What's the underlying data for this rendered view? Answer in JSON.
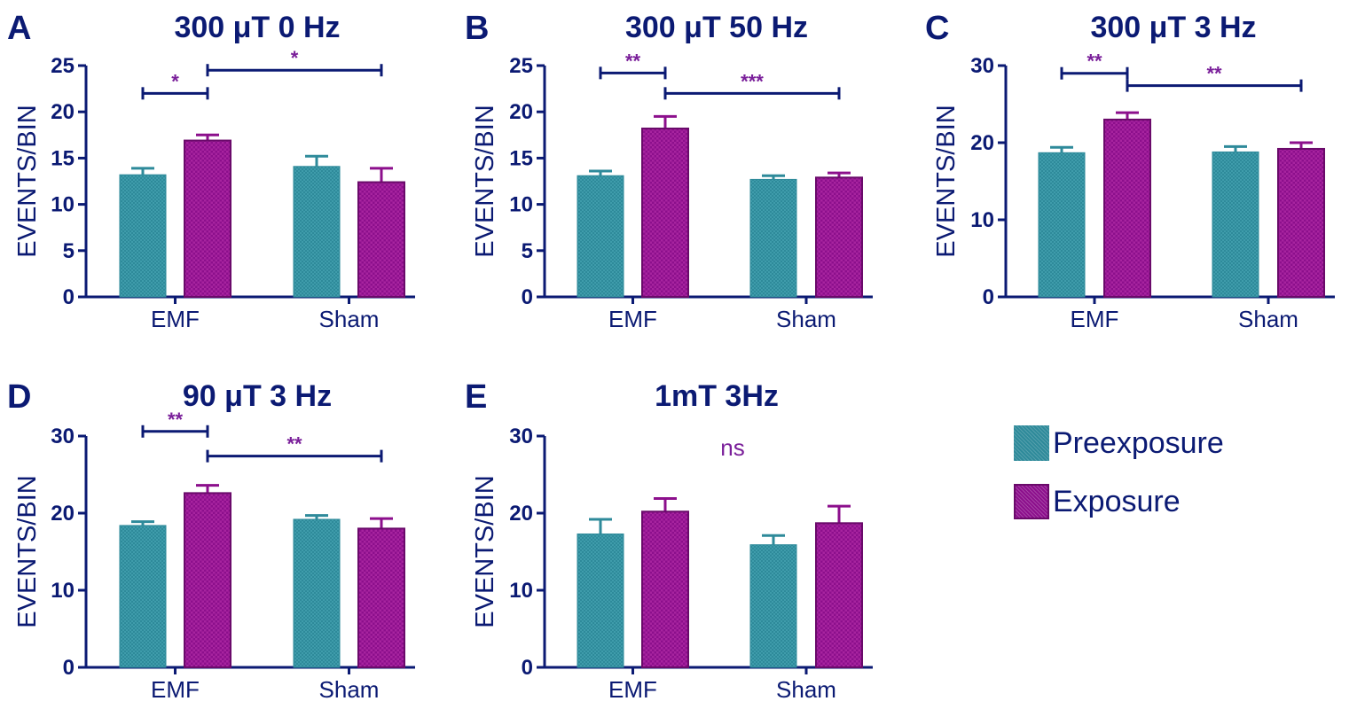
{
  "colors": {
    "axis": "#0b1a73",
    "preexposure": "#2e8a9a",
    "exposure": "#8c0f8c",
    "significance_bracket": "#0b1a73",
    "significance_text": "#7a1f9a"
  },
  "legend": {
    "items": [
      {
        "label": "Preexposure",
        "color": "#2e8a9a"
      },
      {
        "label": "Exposure",
        "color": "#8c0f8c"
      }
    ]
  },
  "chart_data": [
    {
      "type": "bar",
      "panel_letter": "A",
      "title": "300 μT 0 Hz",
      "ylabel": "EVENTS/BIN",
      "categories": [
        "EMF",
        "Sham"
      ],
      "ylim": [
        0,
        25
      ],
      "yticks": [
        "0",
        "5",
        "10",
        "15",
        "20",
        "25"
      ],
      "series": [
        {
          "name": "Preexposure",
          "values": [
            13.2,
            14.1
          ],
          "errors": [
            0.7,
            1.1
          ]
        },
        {
          "name": "Exposure",
          "values": [
            16.9,
            12.4
          ],
          "errors": [
            0.6,
            1.5
          ]
        }
      ],
      "significance": [
        {
          "from": [
            0,
            0
          ],
          "to": [
            0,
            1
          ],
          "y": 22.0,
          "label": "*"
        },
        {
          "from": [
            0,
            1
          ],
          "to": [
            1,
            1
          ],
          "y": 24.5,
          "label": "*"
        }
      ]
    },
    {
      "type": "bar",
      "panel_letter": "B",
      "title": "300 μT 50 Hz",
      "ylabel": "EVENTS/BIN",
      "categories": [
        "EMF",
        "Sham"
      ],
      "ylim": [
        0,
        25
      ],
      "yticks": [
        "0",
        "5",
        "10",
        "15",
        "20",
        "25"
      ],
      "series": [
        {
          "name": "Preexposure",
          "values": [
            13.1,
            12.7
          ],
          "errors": [
            0.5,
            0.4
          ]
        },
        {
          "name": "Exposure",
          "values": [
            18.2,
            12.9
          ],
          "errors": [
            1.3,
            0.5
          ]
        }
      ],
      "significance": [
        {
          "from": [
            0,
            0
          ],
          "to": [
            0,
            1
          ],
          "y": 24.2,
          "label": "**"
        },
        {
          "from": [
            0,
            1
          ],
          "to": [
            1,
            1
          ],
          "y": 22.0,
          "label": "***"
        }
      ]
    },
    {
      "type": "bar",
      "panel_letter": "C",
      "title": "300 μT 3 Hz",
      "ylabel": "EVENTS/BIN",
      "categories": [
        "EMF",
        "Sham"
      ],
      "ylim": [
        0,
        30
      ],
      "yticks": [
        "0",
        "10",
        "20",
        "30"
      ],
      "series": [
        {
          "name": "Preexposure",
          "values": [
            18.7,
            18.8
          ],
          "errors": [
            0.7,
            0.7
          ]
        },
        {
          "name": "Exposure",
          "values": [
            23.0,
            19.2
          ],
          "errors": [
            0.9,
            0.8
          ]
        }
      ],
      "significance": [
        {
          "from": [
            0,
            0
          ],
          "to": [
            0,
            1
          ],
          "y": 29.0,
          "label": "**"
        },
        {
          "from": [
            0,
            1
          ],
          "to": [
            1,
            1
          ],
          "y": 27.4,
          "label": "**"
        }
      ]
    },
    {
      "type": "bar",
      "panel_letter": "D",
      "title": "90 μT 3 Hz",
      "ylabel": "EVENTS/BIN",
      "categories": [
        "EMF",
        "Sham"
      ],
      "ylim": [
        0,
        30
      ],
      "yticks": [
        "0",
        "10",
        "20",
        "30"
      ],
      "series": [
        {
          "name": "Preexposure",
          "values": [
            18.4,
            19.2
          ],
          "errors": [
            0.5,
            0.5
          ]
        },
        {
          "name": "Exposure",
          "values": [
            22.6,
            18.0
          ],
          "errors": [
            1.0,
            1.3
          ]
        }
      ],
      "significance": [
        {
          "from": [
            0,
            0
          ],
          "to": [
            0,
            1
          ],
          "y": 30.6,
          "label": "**"
        },
        {
          "from": [
            0,
            1
          ],
          "to": [
            1,
            1
          ],
          "y": 27.4,
          "label": "**"
        }
      ]
    },
    {
      "type": "bar",
      "panel_letter": "E",
      "title": "1mT 3Hz",
      "ylabel": "EVENTS/BIN",
      "categories": [
        "EMF",
        "Sham"
      ],
      "ylim": [
        0,
        30
      ],
      "yticks": [
        "0",
        "10",
        "20",
        "30"
      ],
      "series": [
        {
          "name": "Preexposure",
          "values": [
            17.3,
            15.9
          ],
          "errors": [
            1.9,
            1.2
          ]
        },
        {
          "name": "Exposure",
          "values": [
            20.2,
            18.7
          ],
          "errors": [
            1.7,
            2.2
          ]
        }
      ],
      "significance": [],
      "annotation": "ns"
    }
  ]
}
